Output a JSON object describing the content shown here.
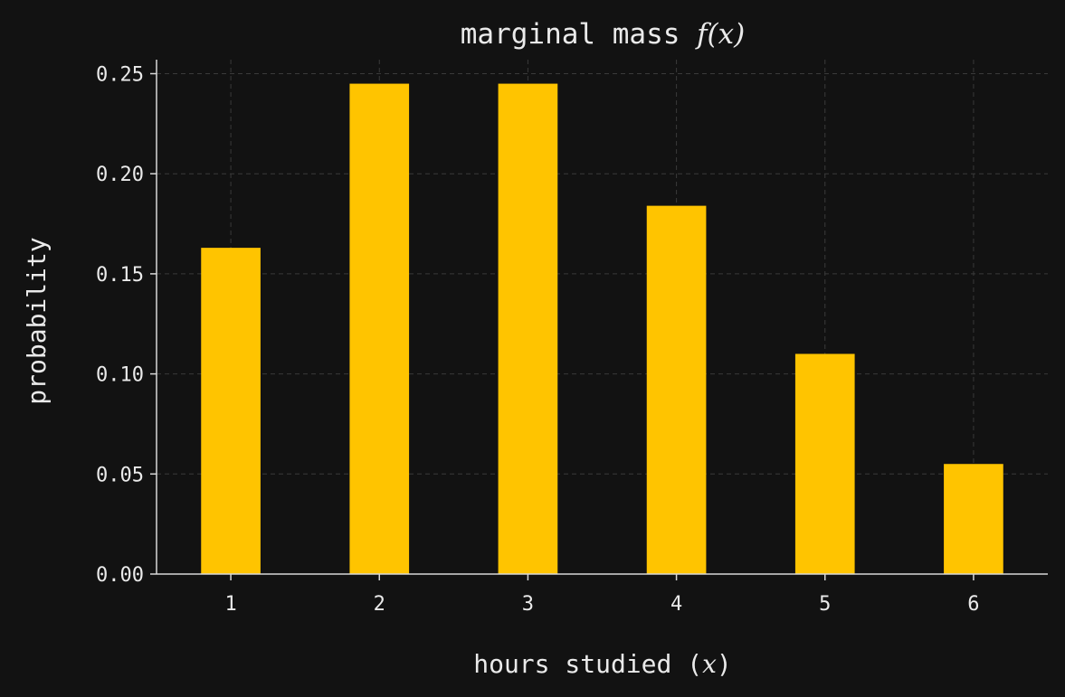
{
  "chart_data": {
    "type": "bar",
    "title": {
      "prefix": "marginal mass ",
      "math": "f(x)"
    },
    "xlabel": {
      "prefix": "hours studied (",
      "math": "x",
      "suffix": ")"
    },
    "ylabel": "probability",
    "categories": [
      "1",
      "2",
      "3",
      "4",
      "5",
      "6"
    ],
    "x": [
      1,
      2,
      3,
      4,
      5,
      6
    ],
    "values": [
      0.163,
      0.245,
      0.245,
      0.184,
      0.11,
      0.055
    ],
    "ylim": [
      0,
      0.257
    ],
    "yticks": [
      0.0,
      0.05,
      0.1,
      0.15,
      0.2,
      0.25
    ],
    "ytick_labels": [
      "0.00",
      "0.05",
      "0.10",
      "0.15",
      "0.20",
      "0.25"
    ],
    "grid": true,
    "bar_color": "#ffc400",
    "background_color": "#121212",
    "text_color": "#eaeaea"
  }
}
